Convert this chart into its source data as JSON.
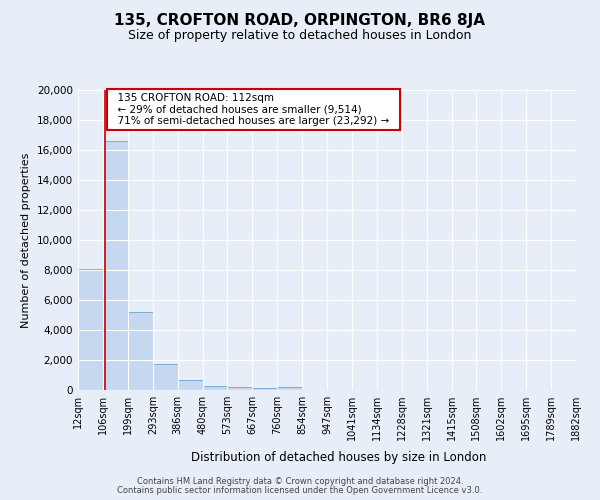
{
  "title": "135, CROFTON ROAD, ORPINGTON, BR6 8JA",
  "subtitle": "Size of property relative to detached houses in London",
  "xlabel": "Distribution of detached houses by size in London",
  "ylabel": "Number of detached properties",
  "bar_color": "#c5d8f0",
  "bar_edge_color": "#7aaed4",
  "background_color": "#e8eef8",
  "grid_color": "#ffffff",
  "red_line_color": "#cc0000",
  "annotation_box_edge": "#cc0000",
  "red_line_x": 112,
  "annotation_title": "135 CROFTON ROAD: 112sqm",
  "annotation_line1": "← 29% of detached houses are smaller (9,514)",
  "annotation_line2": "71% of semi-detached houses are larger (23,292) →",
  "bin_edges": [
    12,
    106,
    199,
    293,
    386,
    480,
    573,
    667,
    760,
    854,
    947,
    1041,
    1134,
    1228,
    1321,
    1415,
    1508,
    1602,
    1695,
    1789,
    1882
  ],
  "bin_counts": [
    8100,
    16600,
    5200,
    1750,
    700,
    300,
    200,
    150,
    200,
    0,
    0,
    0,
    0,
    0,
    0,
    0,
    0,
    0,
    0,
    0
  ],
  "ylim": [
    0,
    20000
  ],
  "yticks": [
    0,
    2000,
    4000,
    6000,
    8000,
    10000,
    12000,
    14000,
    16000,
    18000,
    20000
  ],
  "footer1": "Contains HM Land Registry data © Crown copyright and database right 2024.",
  "footer2": "Contains public sector information licensed under the Open Government Licence v3.0."
}
